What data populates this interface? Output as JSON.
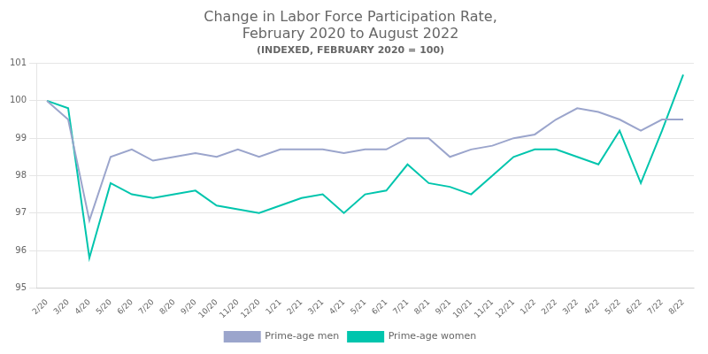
{
  "chart_data": {
    "type": "line",
    "title": [
      "Change in Labor Force Participation Rate,",
      "February 2020 to August 2022"
    ],
    "subtitle": "(INDEXED, FEBRUARY 2020 = 100)",
    "categories": [
      "2/20",
      "3/20",
      "4/20",
      "5/20",
      "6/20",
      "7/20",
      "8/20",
      "9/20",
      "10/20",
      "11/20",
      "12/20",
      "1/21",
      "2/21",
      "3/21",
      "4/21",
      "5/21",
      "6/21",
      "7/21",
      "8/21",
      "9/21",
      "10/21",
      "11/21",
      "12/21",
      "1/22",
      "2/22",
      "3/22",
      "4/22",
      "5/22",
      "6/22",
      "7/22",
      "8/22"
    ],
    "series": [
      {
        "name": "Prime-age men",
        "color": "#9ba5cc",
        "values": [
          100.0,
          99.5,
          96.8,
          98.5,
          98.7,
          98.4,
          98.5,
          98.6,
          98.5,
          98.7,
          98.5,
          98.7,
          98.7,
          98.7,
          98.6,
          98.7,
          98.7,
          99.0,
          99.0,
          98.5,
          98.7,
          98.8,
          99.0,
          99.1,
          99.5,
          99.8,
          99.7,
          99.5,
          99.2,
          99.5,
          99.5
        ]
      },
      {
        "name": "Prime-age women",
        "color": "#00c5ad",
        "values": [
          100.0,
          99.8,
          95.8,
          97.8,
          97.5,
          97.4,
          97.5,
          97.6,
          97.2,
          97.1,
          97.0,
          97.2,
          97.4,
          97.5,
          97.0,
          97.5,
          97.6,
          98.3,
          97.8,
          97.7,
          97.5,
          98.0,
          98.5,
          98.7,
          98.7,
          98.5,
          98.3,
          99.2,
          97.8,
          99.2,
          100.7
        ]
      }
    ],
    "ylim": [
      95,
      101
    ],
    "yticks": [
      95,
      96,
      97,
      98,
      99,
      100,
      101
    ],
    "grid": true,
    "legend": "bottom"
  }
}
